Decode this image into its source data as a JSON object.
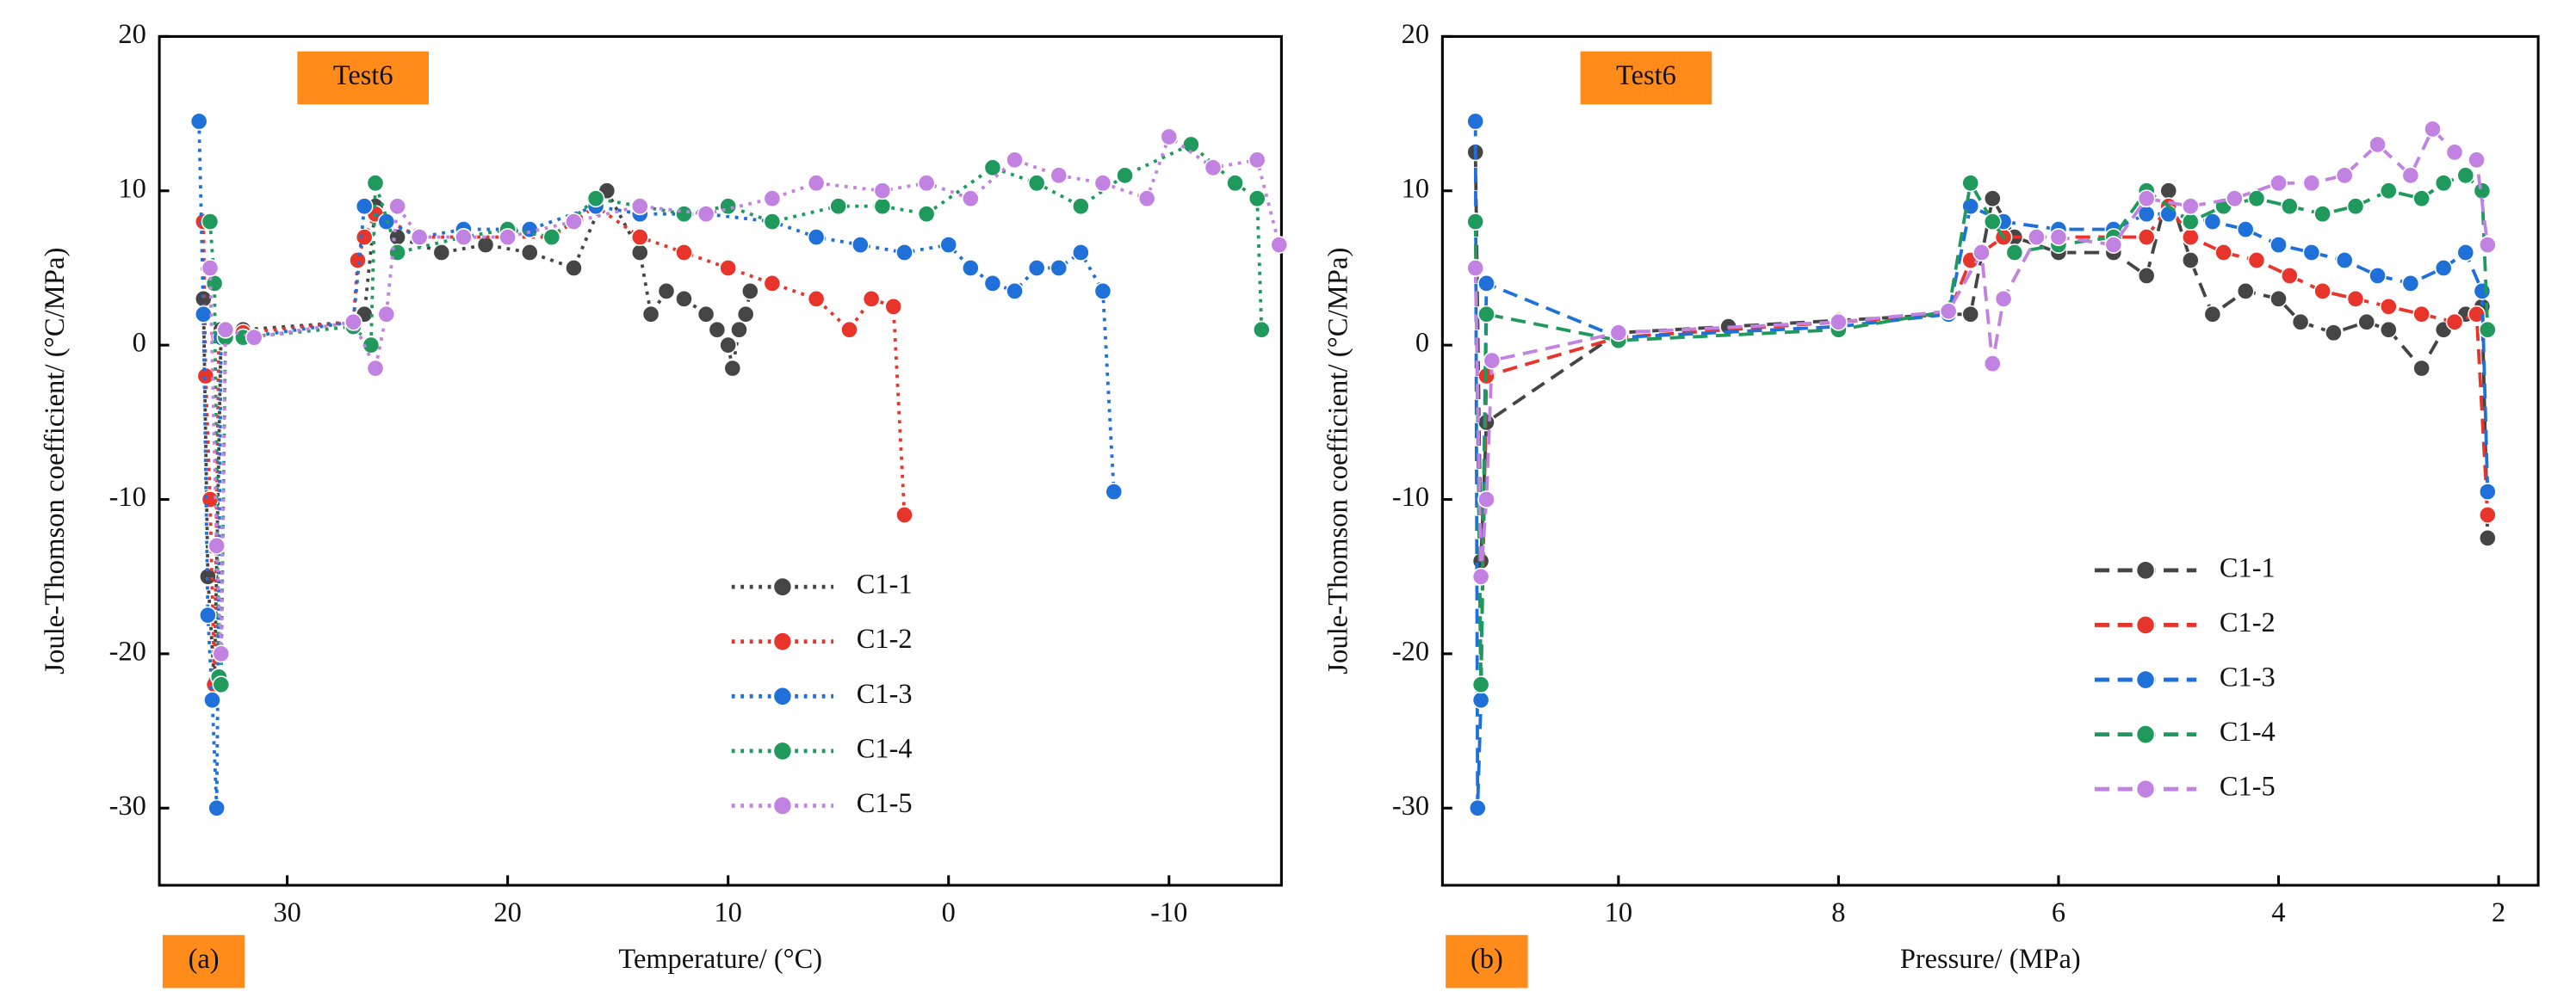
{
  "chart_data": [
    {
      "type": "line",
      "line_style": "dotted",
      "label": "Test6",
      "panel": "(a)",
      "xlabel": "Temperature/ (°C)",
      "ylabel": "Joule-Thomson coefficient/ (°C/MPa)",
      "legend": "lower center",
      "xlim": [
        35.8,
        -15.1
      ],
      "xticks": [
        30,
        20,
        10,
        0,
        -10
      ],
      "ylim": [
        -35,
        20
      ],
      "yticks": [
        -30,
        -20,
        -10,
        0,
        10,
        20
      ],
      "series": [
        {
          "name": "C1-1",
          "color": "#454545",
          "x": [
            33.8,
            33.6,
            33.3,
            33.0,
            32,
            27,
            26.5,
            26,
            25,
            23,
            21,
            19,
            17,
            15.5,
            14,
            13.5,
            12.8,
            12,
            11,
            10.5,
            10,
            9.8,
            9.5,
            9.2,
            9
          ],
          "values": [
            3,
            -15,
            -22,
            1,
            1,
            1.5,
            2,
            9,
            7,
            6,
            6.5,
            6,
            5,
            10,
            6,
            2,
            3.5,
            3,
            2,
            1,
            0,
            -1.5,
            1,
            2,
            3.5
          ]
        },
        {
          "name": "C1-2",
          "color": "#e8352c",
          "x": [
            33.8,
            33.7,
            33.5,
            33.3,
            33.1,
            32,
            27,
            26.8,
            26.5,
            26,
            24,
            22,
            20,
            18,
            16,
            14,
            12,
            10,
            8,
            6,
            4.5,
            3.5,
            2.5,
            2
          ],
          "values": [
            8,
            -2,
            -10,
            -22,
            0.5,
            0.8,
            1.5,
            5.5,
            7,
            8.5,
            7,
            7,
            7,
            7,
            9,
            7,
            6,
            5,
            4,
            3,
            1,
            3,
            2.5,
            -11
          ]
        },
        {
          "name": "C1-3",
          "color": "#1f70d8",
          "x": [
            34,
            33.8,
            33.6,
            33.4,
            33.2,
            33,
            32,
            27,
            26.5,
            25.5,
            24,
            22,
            19,
            16,
            14,
            11,
            8,
            6,
            4,
            2,
            0,
            -1,
            -2,
            -3,
            -4,
            -5,
            -6,
            -7,
            -7.5
          ],
          "values": [
            14.5,
            2,
            -17.5,
            -23,
            -30,
            0.5,
            0.5,
            1.5,
            9,
            8,
            7,
            7.5,
            7.5,
            9,
            8.5,
            8.5,
            8,
            7,
            6.5,
            6,
            6.5,
            5,
            4,
            3.5,
            5,
            5,
            6,
            3.5,
            -9.5
          ]
        },
        {
          "name": "C1-4",
          "color": "#1f9a5c",
          "x": [
            33.5,
            33.3,
            33.1,
            33,
            32.8,
            32,
            27,
            26.2,
            26,
            25,
            22,
            20,
            18,
            16,
            14,
            12,
            10,
            8,
            5,
            3,
            1,
            -2,
            -4,
            -6,
            -8,
            -11,
            -13,
            -14,
            -14.2
          ],
          "values": [
            8,
            4,
            -21.5,
            -22,
            0.5,
            0.5,
            1.2,
            0,
            10.5,
            6,
            7,
            7.5,
            7,
            9.5,
            9,
            8.5,
            9,
            8,
            9,
            9,
            8.5,
            11.5,
            10.5,
            9,
            11,
            13,
            10.5,
            9.5,
            1
          ]
        },
        {
          "name": "C1-5",
          "color": "#c282e2",
          "x": [
            33.5,
            33.2,
            33,
            32.8,
            31.5,
            27,
            26,
            25.5,
            25,
            24,
            22,
            20,
            17,
            14,
            11,
            8,
            6,
            3,
            1,
            -1,
            -3,
            -5,
            -7,
            -9,
            -10,
            -12,
            -14,
            -15
          ],
          "values": [
            5,
            -13,
            -20,
            1,
            0.5,
            1.5,
            -1.5,
            2,
            9,
            7,
            7,
            7,
            8,
            9,
            8.5,
            9.5,
            10.5,
            10,
            10.5,
            9.5,
            12,
            11,
            10.5,
            9.5,
            13.5,
            11.5,
            12,
            6.5
          ]
        }
      ]
    },
    {
      "type": "line",
      "line_style": "dashed",
      "label": "Test6",
      "panel": "(b)",
      "xlabel": "Pressure/ (MPa)",
      "ylabel": "Joule-Thomson coefficient/ (°C/MPa)",
      "legend": "lower right",
      "xlim": [
        11.6,
        1.64
      ],
      "xticks": [
        10,
        8,
        6,
        4,
        2
      ],
      "ylim": [
        -35,
        20
      ],
      "yticks": [
        -30,
        -20,
        -10,
        0,
        10,
        20
      ],
      "series": [
        {
          "name": "C1-1",
          "color": "#454545",
          "x": [
            11.3,
            11.25,
            11.2,
            10,
            9,
            8,
            7,
            6.8,
            6.6,
            6.4,
            6,
            5.5,
            5.2,
            5,
            4.8,
            4.6,
            4.3,
            4,
            3.8,
            3.5,
            3.2,
            3,
            2.7,
            2.5,
            2.3,
            2.15,
            2.1
          ],
          "values": [
            12.5,
            -14,
            -5,
            0.8,
            1.2,
            1.6,
            2,
            2,
            9.5,
            7,
            6,
            6,
            4.5,
            10,
            5.5,
            2,
            3.5,
            3,
            1.5,
            0.8,
            1.5,
            1,
            -1.5,
            1,
            2,
            2.5,
            -12.5
          ]
        },
        {
          "name": "C1-2",
          "color": "#e8352c",
          "x": [
            11.3,
            11.25,
            11.2,
            10,
            8,
            7,
            6.8,
            6.5,
            6,
            5.2,
            5,
            4.8,
            4.5,
            4.2,
            3.9,
            3.6,
            3.3,
            3,
            2.7,
            2.4,
            2.2,
            2.1
          ],
          "values": [
            8,
            -22,
            -2,
            0.5,
            1.5,
            2,
            5.5,
            7,
            7,
            7,
            9,
            7,
            6,
            5.5,
            4.5,
            3.5,
            3,
            2.5,
            2,
            1.5,
            2,
            -11
          ]
        },
        {
          "name": "C1-3",
          "color": "#1f70d8",
          "x": [
            11.3,
            11.28,
            11.25,
            11.2,
            10,
            8,
            7,
            6.8,
            6.5,
            6,
            5.5,
            5.2,
            5,
            4.6,
            4.3,
            4,
            3.7,
            3.4,
            3.1,
            2.8,
            2.5,
            2.3,
            2.15,
            2.1
          ],
          "values": [
            14.5,
            -30,
            -23,
            4,
            0.5,
            1.2,
            2,
            9,
            8,
            7.5,
            7.5,
            8.5,
            8.5,
            8,
            7.5,
            6.5,
            6,
            5.5,
            4.5,
            4,
            5,
            6,
            3.5,
            -9.5
          ]
        },
        {
          "name": "C1-4",
          "color": "#1f9a5c",
          "x": [
            11.3,
            11.25,
            11.2,
            10,
            8,
            7,
            6.8,
            6.6,
            6.4,
            6,
            5.5,
            5.2,
            4.8,
            4.5,
            4.2,
            3.9,
            3.6,
            3.3,
            3,
            2.7,
            2.5,
            2.3,
            2.15,
            2.1
          ],
          "values": [
            8,
            -22,
            2,
            0.3,
            1,
            2.2,
            10.5,
            8,
            6,
            6.5,
            7,
            10,
            8,
            9,
            9.5,
            9,
            8.5,
            9,
            10,
            9.5,
            10.5,
            11,
            10,
            1
          ]
        },
        {
          "name": "C1-5",
          "color": "#c282e2",
          "x": [
            11.3,
            11.25,
            11.2,
            11.15,
            10,
            8,
            7,
            6.7,
            6.6,
            6.5,
            6.2,
            6,
            5.5,
            5.2,
            4.8,
            4.4,
            4,
            3.7,
            3.4,
            3.1,
            2.8,
            2.6,
            2.4,
            2.2,
            2.1
          ],
          "values": [
            5,
            -15,
            -10,
            -1,
            0.8,
            1.5,
            2.2,
            6,
            -1.2,
            3,
            7,
            7,
            6.5,
            9.5,
            9,
            9.5,
            10.5,
            10.5,
            11,
            13,
            11,
            14,
            12.5,
            12,
            6.5
          ]
        }
      ]
    }
  ]
}
